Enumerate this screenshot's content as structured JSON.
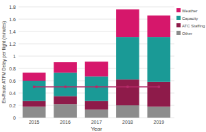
{
  "chart_data": {
    "type": "bar",
    "stacked": true,
    "grid": true,
    "legend": "top-right",
    "x_label": "Year",
    "y_label": "En-Route ATFM Delay per flight (minutes)",
    "categories": [
      "2015",
      "2016",
      "2017",
      "2018",
      "2019"
    ],
    "ylim": [
      0,
      1.8
    ],
    "yticks": [
      0,
      0.2,
      0.4,
      0.6,
      0.8,
      1,
      1.2,
      1.4,
      1.6,
      1.8
    ],
    "series": [
      {
        "name": "Other",
        "color": "#8c8c8c",
        "values": [
          0.18,
          0.22,
          0.13,
          0.2,
          0.18
        ]
      },
      {
        "name": "ATC Staffing",
        "color": "#8e1b4a",
        "values": [
          0.09,
          0.13,
          0.14,
          0.42,
          0.4
        ]
      },
      {
        "name": "Capacity",
        "color": "#1a9a96",
        "values": [
          0.33,
          0.38,
          0.4,
          0.69,
          0.73
        ]
      },
      {
        "name": "Weather",
        "color": "#d6176b",
        "values": [
          0.13,
          0.17,
          0.24,
          0.45,
          0.35
        ]
      },
      {
        "type": "line",
        "color": "#b52a68",
        "marker": "circle",
        "values": [
          0.5,
          0.5,
          0.5,
          0.5,
          0.5
        ]
      }
    ]
  }
}
